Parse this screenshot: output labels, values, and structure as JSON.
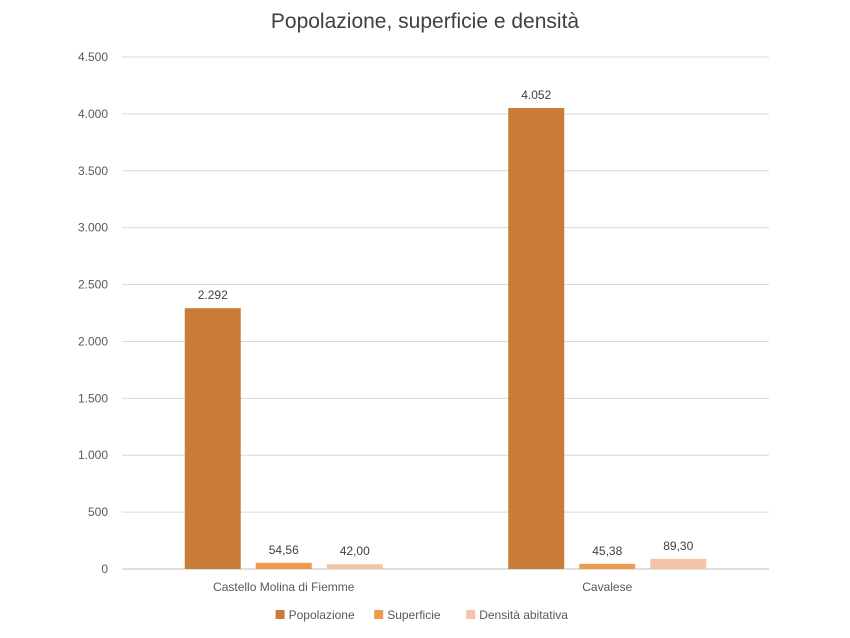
{
  "chart_data": {
    "type": "bar",
    "title": "Popolazione, superficie e densità",
    "xlabel": "",
    "ylabel": "",
    "categories": [
      "Castello Molina di Fiemme",
      "Cavalese"
    ],
    "series": [
      {
        "name": "Popolazione",
        "values": [
          2292,
          4052
        ],
        "labels": [
          "2.292",
          "4.052"
        ],
        "color": "#C97B38"
      },
      {
        "name": "Superficie",
        "values": [
          54.56,
          45.38
        ],
        "labels": [
          "54,56",
          "45,38"
        ],
        "color": "#EE9A4F"
      },
      {
        "name": "Densità abitativa",
        "values": [
          42.0,
          89.3
        ],
        "labels": [
          "42,00",
          "89,30"
        ],
        "color": "#F5C4A6"
      }
    ],
    "ylim": [
      0,
      4500
    ],
    "yticks": [
      0,
      500,
      1000,
      1500,
      2000,
      2500,
      3000,
      3500,
      4000,
      4500
    ],
    "ytick_labels": [
      "0",
      "500",
      "1.000",
      "1.500",
      "2.000",
      "2.500",
      "3.000",
      "3.500",
      "4.000",
      "4.500"
    ],
    "grid": true,
    "legend_position": "bottom"
  }
}
